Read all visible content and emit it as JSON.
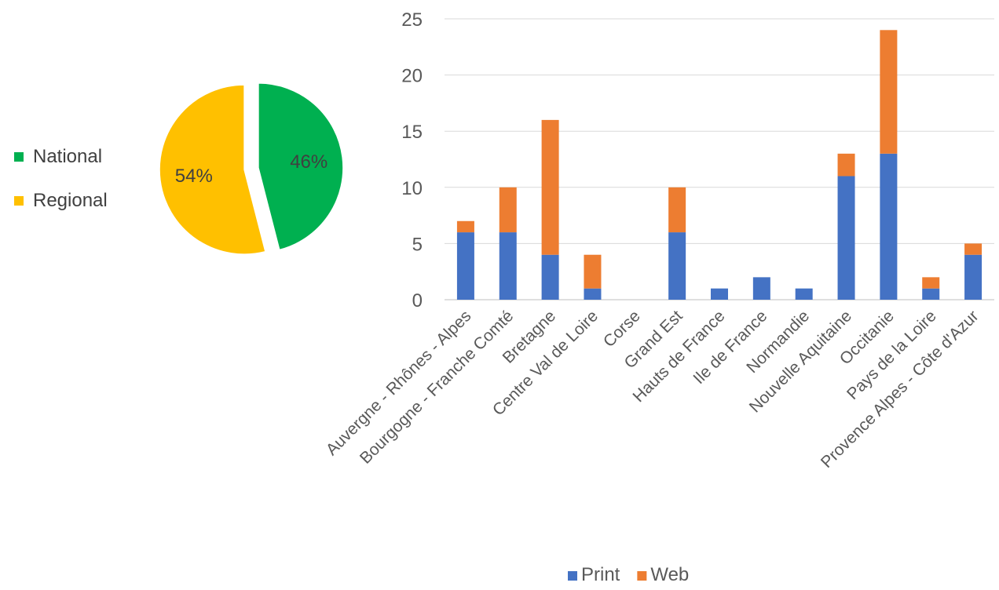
{
  "chart_data": [
    {
      "type": "pie",
      "title": "",
      "legend_position": "left",
      "slices": [
        {
          "label": "National",
          "value": 46,
          "data_label": "46%",
          "color": "#00B050"
        },
        {
          "label": "Regional",
          "value": 54,
          "data_label": "54%",
          "color": "#FFC000"
        }
      ]
    },
    {
      "type": "bar",
      "stacked": true,
      "title": "",
      "xlabel": "",
      "ylabel": "",
      "ylim": [
        0,
        25
      ],
      "yticks": [
        "0",
        "5",
        "10",
        "15",
        "20",
        "25"
      ],
      "grid": true,
      "legend_position": "bottom",
      "categories": [
        "Auvergne - Rhônes - Alpes",
        "Bourgogne - Franche Comté",
        "Bretagne",
        "Centre Val de Loire",
        "Corse",
        "Grand Est",
        "Hauts de France",
        "Ile de France",
        "Normandie",
        "Nouvelle Aquitaine",
        "Occitanie",
        "Pays de la Loire",
        "Provence Alpes - Côte d'Azur"
      ],
      "series": [
        {
          "name": "Print",
          "color": "#4472C4",
          "values": [
            6,
            6,
            4,
            1,
            0,
            6,
            1,
            2,
            1,
            11,
            13,
            1,
            4
          ]
        },
        {
          "name": "Web",
          "color": "#ED7D31",
          "values": [
            1,
            4,
            12,
            3,
            0,
            4,
            0,
            0,
            0,
            2,
            11,
            1,
            1
          ]
        }
      ]
    }
  ]
}
